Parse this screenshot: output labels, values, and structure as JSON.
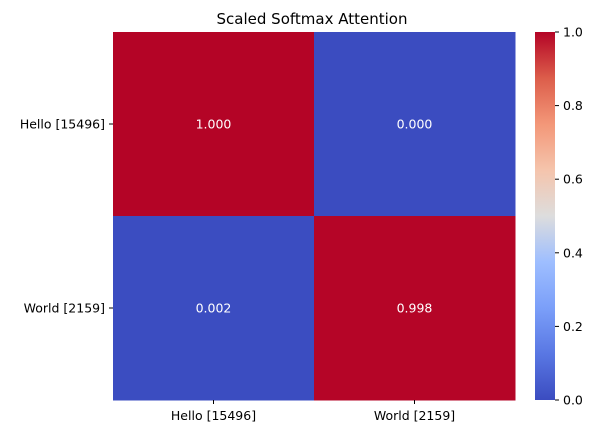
{
  "chart_data": {
    "type": "heatmap",
    "title": "Scaled Softmax Attention",
    "x_categories": [
      "Hello [15496]",
      "World [2159]"
    ],
    "y_categories": [
      "Hello [15496]",
      "World [2159]"
    ],
    "values": [
      [
        1.0,
        0.0
      ],
      [
        0.002,
        0.998
      ]
    ],
    "value_labels": [
      [
        "1.000",
        "0.000"
      ],
      [
        "0.002",
        "0.998"
      ]
    ],
    "colormap": "coolwarm",
    "colormap_low": "#3b4cc0",
    "colormap_high": "#b40426",
    "annotation_color": "#ffffff",
    "vmin": 0,
    "vmax": 1,
    "colorbar_ticks": [
      "0.0",
      "0.2",
      "0.4",
      "0.6",
      "0.8",
      "1.0"
    ],
    "xlabel": "",
    "ylabel": "",
    "grid": false
  }
}
